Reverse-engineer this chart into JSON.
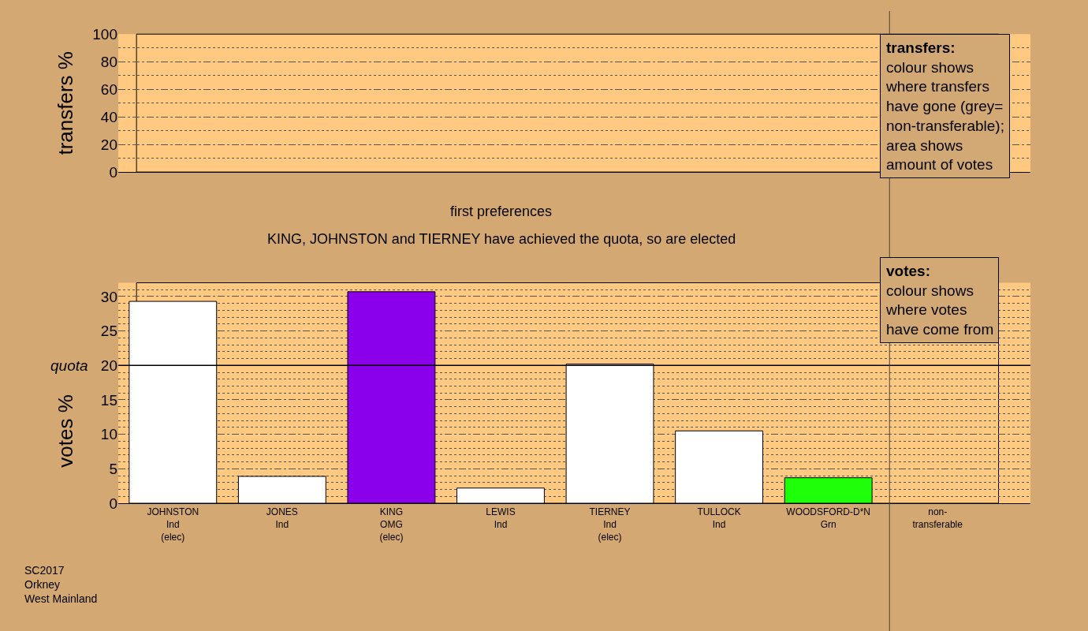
{
  "chart_data": [
    {
      "type": "bar",
      "ylabel": "transfers %",
      "categories": [
        null,
        null,
        null,
        null,
        null,
        null,
        null,
        null
      ],
      "values": [
        null,
        null,
        null,
        null,
        null,
        null,
        null,
        null
      ],
      "ylim": [
        0,
        100
      ],
      "yticks": [
        0,
        20,
        40,
        60,
        80,
        100
      ],
      "grid": "y",
      "tick_labels": "y",
      "annotations": [
        "**transfers:**\ncolour shows\nwhere transfers\nhave gone (grey=\nnon-transferable);\narea shows\namount of votes"
      ]
    },
    {
      "type": "bar",
      "title": "first preferences",
      "subtitle": "KING, JOHNSTON and TIERNEY have achieved the quota, so are elected",
      "ylabel": "votes %",
      "categories": [
        "JOHNSTON\nInd\n(elec)",
        "JONES\nInd",
        "KING\nOMG\n(elec)",
        "LEWIS\nInd",
        "TIERNEY\nInd\n(elec)",
        "TULLOCK\nInd",
        "WOODSFORD-D*N\nGrn",
        "non-\ntransferable"
      ],
      "values": [
        29.3,
        3.9,
        30.7,
        2.2,
        20.2,
        10.5,
        3.7,
        null
      ],
      "colors": [
        "#ffffff",
        "#ffffff",
        "#8b00ea",
        "#ffffff",
        "#ffffff",
        "#ffffff",
        "#1eff0a",
        "#ffffff"
      ],
      "ylim": [
        0,
        32
      ],
      "yticks": [
        0,
        5,
        10,
        15,
        20,
        25,
        30
      ],
      "grid": "y",
      "ref_lines": [
        {
          "axis": "y",
          "value": 20,
          "label": "quota",
          "color": "#000000",
          "line_style": "solid"
        }
      ],
      "annotations": [
        "**votes:**\ncolour shows\nwhere votes\nhave come from",
        "SC2017\nOrkney\nWest Mainland"
      ]
    }
  ]
}
